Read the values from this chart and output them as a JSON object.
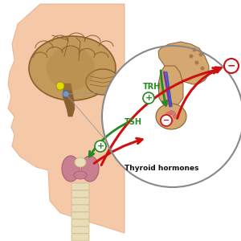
{
  "skin_color": "#F5C8A8",
  "skin_edge": "#E8B898",
  "brain_color": "#C49A5A",
  "brain_dark": "#8B6030",
  "brain_mid": "#B08848",
  "pit_color": "#D4A870",
  "thy_color": "#C88090",
  "thy_edge": "#A86070",
  "trachea_color": "#E8DDB8",
  "trachea_edge": "#C8B888",
  "circle_edge": "#888888",
  "grn": "#228B22",
  "red": "#CC1111",
  "purp": "#7733AA",
  "blu": "#3355CC",
  "txt_grn": "#228B22",
  "txt_dark": "#111111",
  "label_TRH": "TRH",
  "label_TSH": "TSH",
  "label_thyroid": "Thyroid hormones",
  "yellow": "#DDDD00",
  "blue_dot": "#6699CC",
  "fig_w": 3.0,
  "fig_h": 3.0,
  "dpi": 100
}
